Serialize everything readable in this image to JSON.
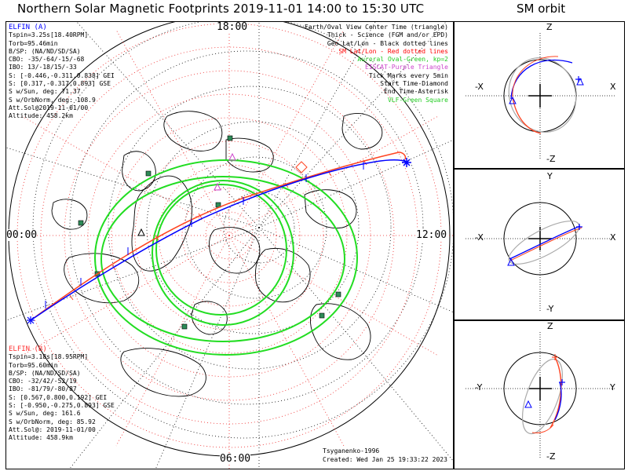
{
  "title": "Northern Solar Magnetic Footprints 2019-11-01 14:00 to 15:30 UTC",
  "orbit_title": "SM orbit",
  "hours": {
    "top": "18:00",
    "left": "00:00",
    "right": "12:00",
    "bottom": "06:00"
  },
  "elfin_a": {
    "name": "ELFIN (A)",
    "color": "#0000ff",
    "lines": [
      "Tspin=3.25s[18.40RPM]",
      "Torb=95.46min",
      "B/SP: (NA/ND/SD/SA)",
      "CBO: -35/-64/-15/-68",
      "IBO: 13/-18/15/-33",
      "S: [-0.446,-0.311,0.838] GEI",
      "S: [0.317,-0.317,0.893] GSE",
      "S w/Sun, deg: 71.37",
      "S w/OrbNorm, deg: 108.9",
      "Att.Sol@2019-11-01/00",
      "Altitude: 458.2km"
    ]
  },
  "elfin_b": {
    "name": "ELFIN (B)",
    "color": "#ff3333",
    "lines": [
      "Tspin=3.18s[18.95RPM]",
      "Torb=95.60min",
      "B/SP: (NA/ND/SD/SA)",
      "CBO: -32/42/-52/19",
      "IBO: -81/79/-80/87",
      "S: [0.567,0.800,0.192] GEI",
      "S: [-0.950,-0.275,0.893] GSE",
      "S w/Sun, deg: 161.6",
      "S w/OrbNorm, deg: 85.92",
      "Att.Sol@: 2019-11-01/00",
      "Altitude: 458.9km"
    ]
  },
  "legend": [
    {
      "text": "Earth/Oval View Center Time (triangle)",
      "color": "#000000"
    },
    {
      "text": "Thick - Science (FGM and/or EPD)",
      "color": "#000000"
    },
    {
      "text": "Geo Lat/Lon - Black dotted lines",
      "color": "#000000"
    },
    {
      "text": "SM Lat/Lon - Red dotted lines",
      "color": "#ff0000"
    },
    {
      "text": "Auroral Oval-Green, kp=2",
      "color": "#22cc22"
    },
    {
      "text": "EISCAT-Purple Triangle",
      "color": "#cc44cc"
    },
    {
      "text": "Tick Marks every 5min",
      "color": "#000000"
    },
    {
      "text": "Start Time-Diamond",
      "color": "#000000"
    },
    {
      "text": "End Time-Asterisk",
      "color": "#000000"
    },
    {
      "text": "VLF-Green Square",
      "color": "#22cc22"
    }
  ],
  "credits": {
    "model": "Tsyganenko-1996",
    "created": "Created: Wed Jan 25 19:33:22 2023"
  },
  "orbit_panels": [
    {
      "top": "Z",
      "bottom": "-Z",
      "left": "-X",
      "right": "X"
    },
    {
      "top": "Y",
      "bottom": "-Y",
      "left": "-X",
      "right": "X"
    },
    {
      "top": "Z",
      "bottom": "-Z",
      "left": "-Y",
      "right": "Y"
    }
  ],
  "colors": {
    "elfin_a": "#0000ff",
    "elfin_b": "#ff3333",
    "oval": "#22dd22",
    "grid_sm": "#ff2222",
    "grid_geo": "#000000",
    "vlf": "#2e8b57",
    "eiscat": "#cc44cc"
  }
}
